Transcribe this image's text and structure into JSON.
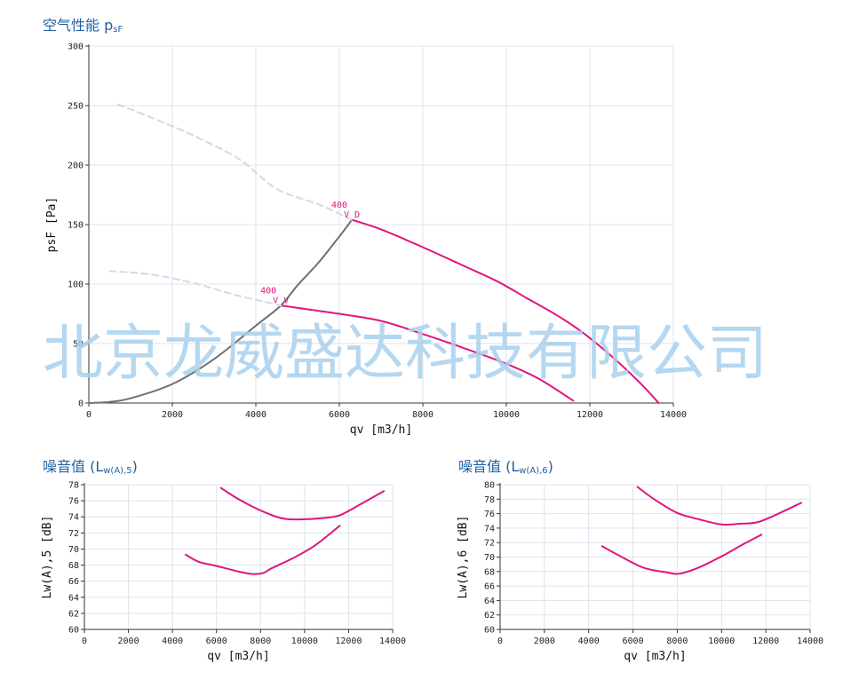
{
  "titles": {
    "main": "空气性能 p",
    "main_sub": "sF",
    "noise5": "噪音值 (L",
    "noise5_sub": "w(A),5",
    "noise5_end": ")",
    "noise6": "噪音值 (L",
    "noise6_sub": "w(A),6",
    "noise6_end": ")"
  },
  "watermark": "北京龙威盛达科技有限公司",
  "colors": {
    "curve": "#e0157e",
    "system": "#707070",
    "dashed": "#d4d9e6",
    "grid": "#dde3ec",
    "axis": "#333333",
    "title": "#1f5fa3"
  },
  "chart_data": [
    {
      "type": "line",
      "title": "空气性能 psF",
      "xlabel": "qv [m3/h]",
      "ylabel": "psF [Pa]",
      "xlim": [
        0,
        14000
      ],
      "ylim": [
        0,
        300
      ],
      "xticks": [
        0,
        2000,
        4000,
        6000,
        8000,
        10000,
        12000,
        14000
      ],
      "yticks": [
        0,
        50,
        100,
        150,
        200,
        250,
        300
      ],
      "grid": true,
      "series": [
        {
          "style": "solid",
          "color": "#e0157e",
          "x": [
            6300,
            7000,
            8000,
            9000,
            9800,
            10500,
            11200,
            11800,
            12500,
            13200,
            13650
          ],
          "y": [
            154,
            146,
            131,
            115,
            102,
            88,
            74,
            60,
            40,
            17,
            0
          ]
        },
        {
          "style": "solid",
          "color": "#e0157e",
          "x": [
            4600,
            5200,
            6000,
            7000,
            8000,
            9000,
            10000,
            10800,
            11600
          ],
          "y": [
            82,
            79,
            75,
            69,
            58,
            46,
            33,
            20,
            2
          ]
        },
        {
          "style": "solid",
          "color": "#707070",
          "x": [
            0,
            500,
            1000,
            2000,
            3000,
            4000,
            4600,
            5000,
            5500,
            6000,
            6300
          ],
          "y": [
            0,
            1,
            4,
            16,
            37,
            65,
            82,
            99,
            118,
            140,
            154
          ]
        },
        {
          "style": "dashed",
          "color": "#d4d9e6",
          "x": [
            700,
            1500,
            2500,
            3600,
            4500,
            5500,
            6300
          ],
          "y": [
            251,
            240,
            225,
            205,
            180,
            167,
            154
          ]
        },
        {
          "style": "dashed",
          "color": "#d4d9e6",
          "x": [
            500,
            1500,
            2500,
            3500,
            4600
          ],
          "y": [
            111,
            108,
            101,
            91,
            82
          ]
        }
      ],
      "annotations": [
        {
          "text": "400",
          "x": 6000,
          "y": 164
        },
        {
          "text": "V D",
          "x": 6300,
          "y": 156
        },
        {
          "text": "400",
          "x": 4300,
          "y": 92
        },
        {
          "text": "V V",
          "x": 4600,
          "y": 84
        }
      ]
    },
    {
      "type": "line",
      "title": "噪音值 (Lw(A),5)",
      "xlabel": "qv [m3/h]",
      "ylabel": "Lw(A),5 [dB]",
      "xlim": [
        0,
        14000
      ],
      "ylim": [
        60,
        78
      ],
      "xticks": [
        0,
        2000,
        4000,
        6000,
        8000,
        10000,
        12000,
        14000
      ],
      "yticks": [
        60,
        62,
        64,
        66,
        68,
        70,
        72,
        74,
        76,
        78
      ],
      "grid": true,
      "series": [
        {
          "style": "solid",
          "color": "#e0157e",
          "x": [
            6200,
            7000,
            8000,
            9000,
            10000,
            11000,
            11600,
            12500,
            13600
          ],
          "y": [
            77.6,
            76.2,
            74.8,
            73.8,
            73.7,
            73.9,
            74.2,
            75.5,
            77.2
          ]
        },
        {
          "style": "solid",
          "color": "#e0157e",
          "x": [
            4600,
            5200,
            6000,
            7000,
            7600,
            8100,
            8500,
            9500,
            10500,
            11600
          ],
          "y": [
            69.3,
            68.4,
            67.9,
            67.2,
            66.9,
            67.0,
            67.6,
            68.9,
            70.5,
            72.9
          ]
        }
      ]
    },
    {
      "type": "line",
      "title": "噪音值 (Lw(A),6)",
      "xlabel": "qv [m3/h]",
      "ylabel": "Lw(A),6 [dB]",
      "xlim": [
        0,
        14000
      ],
      "ylim": [
        60,
        80
      ],
      "xticks": [
        0,
        2000,
        4000,
        6000,
        8000,
        10000,
        12000,
        14000
      ],
      "yticks": [
        60,
        62,
        64,
        66,
        68,
        70,
        72,
        74,
        76,
        78,
        80
      ],
      "grid": true,
      "series": [
        {
          "style": "solid",
          "color": "#e0157e",
          "x": [
            6200,
            7000,
            8000,
            9000,
            10000,
            10800,
            11600,
            12500,
            13600
          ],
          "y": [
            79.7,
            77.9,
            76.1,
            75.2,
            74.5,
            74.6,
            74.8,
            75.9,
            77.5
          ]
        },
        {
          "style": "solid",
          "color": "#e0157e",
          "x": [
            4600,
            5500,
            6500,
            7500,
            8100,
            9000,
            10000,
            11000,
            11800
          ],
          "y": [
            71.5,
            70.0,
            68.5,
            67.9,
            67.7,
            68.6,
            70.1,
            71.8,
            73.1
          ]
        }
      ]
    }
  ]
}
